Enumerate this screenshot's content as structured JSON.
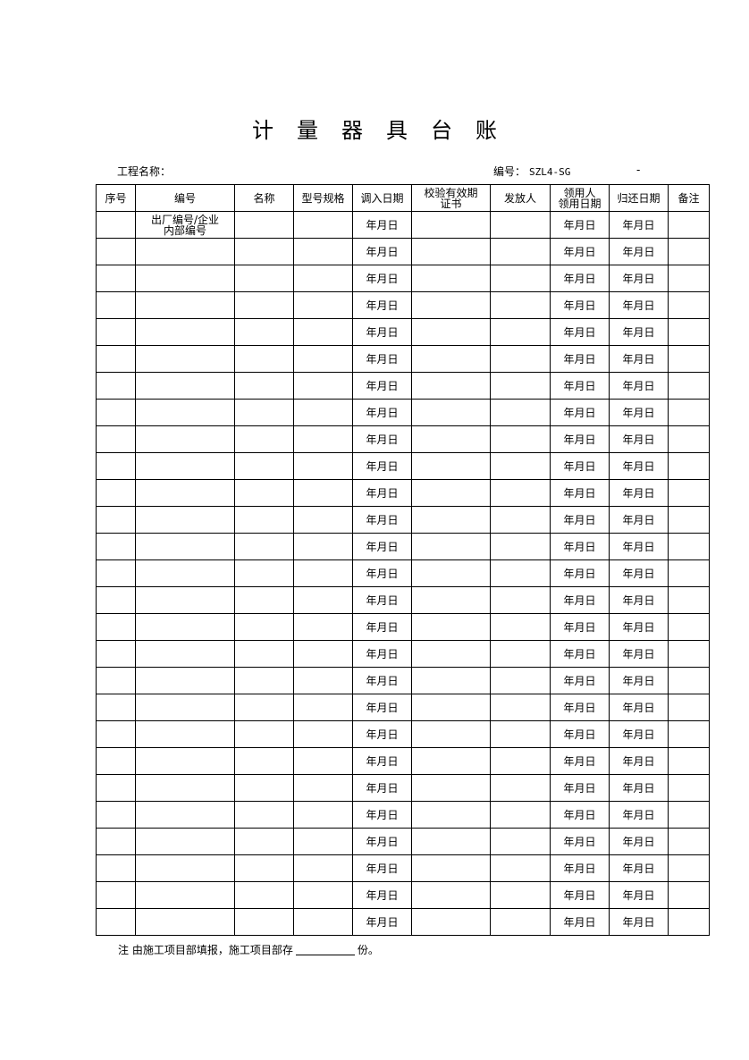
{
  "title": "计量器具台账",
  "project_label": "工程名称：",
  "code_label": "编号：",
  "code_value": "SZL4-SG",
  "code_suffix": "-",
  "headers": [
    "序号",
    "编号",
    "名称",
    "型号规格",
    "调入日期",
    "校验有效期\n证书",
    "发放人",
    "领用人\n领用日期",
    "归还日期",
    "备注"
  ],
  "first_row_code": "出厂编号/企业\n内部编号",
  "date_placeholder": "年月日",
  "row_count": 27,
  "note_prefix": "注  由施工项目部填报，施工项目部存",
  "note_suffix": "份。"
}
